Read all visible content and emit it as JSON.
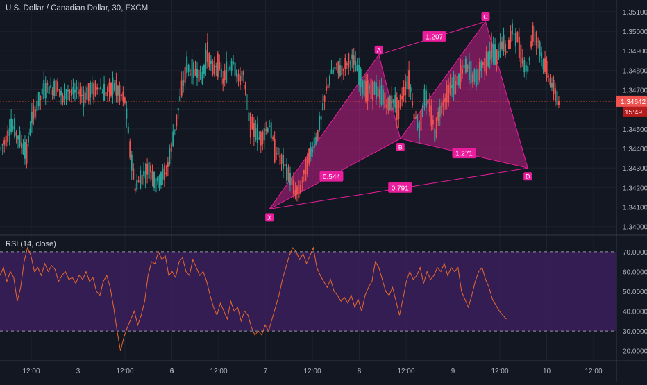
{
  "chart_data": {
    "type": "candlestick",
    "title": "U.S. Dollar / Canadian Dollar, 30, FXCM",
    "price_ylim": [
      1.3396,
      1.3516
    ],
    "price_ticks": [
      "1.35100",
      "1.35000",
      "1.34900",
      "1.34800",
      "1.34700",
      "1.34600",
      "1.34500",
      "1.34400",
      "1.34300",
      "1.34200",
      "1.34100",
      "1.34000"
    ],
    "last_price": "1.34642",
    "countdown": "15:49",
    "x_ticks": [
      "12:00",
      "3",
      "12:00",
      "6",
      "12:00",
      "7",
      "12:00",
      "8",
      "12:00",
      "9",
      "12:00",
      "10",
      "12:00"
    ],
    "bold_x_ticks": [
      "6"
    ],
    "colors": {
      "up": "#26a69a",
      "down": "#ef5350",
      "pattern": "#e91e9c",
      "rsi_line": "#e8692c",
      "rsi_band": "#3b1f5c",
      "price_line": "#ff5722"
    },
    "price_path": [
      [
        0,
        1.344
      ],
      [
        3,
        1.3445
      ],
      [
        6,
        1.3452
      ],
      [
        9,
        1.3448
      ],
      [
        12,
        1.3442
      ],
      [
        15,
        1.3438
      ],
      [
        18,
        1.3455
      ],
      [
        21,
        1.3462
      ],
      [
        24,
        1.3468
      ],
      [
        27,
        1.3472
      ],
      [
        30,
        1.347
      ],
      [
        33,
        1.3473
      ],
      [
        36,
        1.3465
      ],
      [
        39,
        1.347
      ],
      [
        42,
        1.3468
      ],
      [
        45,
        1.347
      ],
      [
        48,
        1.3466
      ],
      [
        51,
        1.3469
      ],
      [
        54,
        1.347
      ],
      [
        57,
        1.3472
      ],
      [
        60,
        1.3468
      ],
      [
        63,
        1.347
      ],
      [
        66,
        1.3472
      ],
      [
        69,
        1.3468
      ],
      [
        72,
        1.3465
      ],
      [
        75,
        1.344
      ],
      [
        78,
        1.342
      ],
      [
        81,
        1.3424
      ],
      [
        84,
        1.3428
      ],
      [
        87,
        1.343
      ],
      [
        90,
        1.3422
      ],
      [
        93,
        1.3425
      ],
      [
        96,
        1.3428
      ],
      [
        99,
        1.344
      ],
      [
        102,
        1.3455
      ],
      [
        105,
        1.347
      ],
      [
        108,
        1.3482
      ],
      [
        111,
        1.3478
      ],
      [
        114,
        1.348
      ],
      [
        117,
        1.3476
      ],
      [
        120,
        1.349
      ],
      [
        123,
        1.348
      ],
      [
        126,
        1.3484
      ],
      [
        129,
        1.3475
      ],
      [
        132,
        1.348
      ],
      [
        135,
        1.3485
      ],
      [
        138,
        1.3475
      ],
      [
        141,
        1.3478
      ],
      [
        144,
        1.3455
      ],
      [
        147,
        1.345
      ],
      [
        150,
        1.3445
      ],
      [
        153,
        1.3448
      ],
      [
        156,
        1.3452
      ],
      [
        159,
        1.344
      ],
      [
        162,
        1.3436
      ],
      [
        165,
        1.343
      ],
      [
        168,
        1.3425
      ],
      [
        171,
        1.3418
      ],
      [
        174,
        1.342
      ],
      [
        177,
        1.343
      ],
      [
        180,
        1.3438
      ],
      [
        183,
        1.3445
      ],
      [
        186,
        1.3455
      ],
      [
        189,
        1.347
      ],
      [
        192,
        1.3478
      ],
      [
        195,
        1.3482
      ],
      [
        198,
        1.348
      ],
      [
        201,
        1.3484
      ],
      [
        204,
        1.3486
      ],
      [
        207,
        1.348
      ],
      [
        210,
        1.3472
      ],
      [
        213,
        1.347
      ],
      [
        216,
        1.3471
      ],
      [
        219,
        1.3468
      ],
      [
        222,
        1.3466
      ],
      [
        225,
        1.3462
      ],
      [
        228,
        1.3465
      ],
      [
        231,
        1.346
      ],
      [
        234,
        1.347
      ],
      [
        237,
        1.3476
      ],
      [
        240,
        1.3458
      ],
      [
        243,
        1.345
      ],
      [
        246,
        1.3465
      ],
      [
        249,
        1.3462
      ],
      [
        252,
        1.3448
      ],
      [
        255,
        1.346
      ],
      [
        258,
        1.3466
      ],
      [
        261,
        1.3471
      ],
      [
        264,
        1.3472
      ],
      [
        267,
        1.3478
      ],
      [
        270,
        1.3482
      ],
      [
        273,
        1.3478
      ],
      [
        276,
        1.3475
      ],
      [
        279,
        1.3482
      ],
      [
        282,
        1.3485
      ],
      [
        285,
        1.349
      ],
      [
        288,
        1.3486
      ],
      [
        291,
        1.3494
      ],
      [
        294,
        1.349
      ],
      [
        297,
        1.35
      ],
      [
        300,
        1.3496
      ],
      [
        303,
        1.3485
      ],
      [
        306,
        1.348
      ],
      [
        309,
        1.35
      ],
      [
        312,
        1.3495
      ],
      [
        315,
        1.3484
      ],
      [
        318,
        1.3478
      ],
      [
        321,
        1.347
      ],
      [
        324,
        1.3464
      ]
    ],
    "harmonic_pattern": {
      "points": [
        {
          "label": "X",
          "t": 156.5,
          "price": 1.3409
        },
        {
          "label": "A",
          "t": 220,
          "price": 1.3488
        },
        {
          "label": "B",
          "t": 232.5,
          "price": 1.3445
        },
        {
          "label": "C",
          "t": 282,
          "price": 1.3505
        },
        {
          "label": "D",
          "t": 306.5,
          "price": 1.343
        }
      ],
      "ratios": [
        {
          "label": "0.544",
          "between": "X-B"
        },
        {
          "label": "1.207",
          "between": "A-C"
        },
        {
          "label": "1.271",
          "between": "B-D"
        },
        {
          "label": "0.791",
          "between": "X-D"
        }
      ]
    },
    "rsi": {
      "title": "RSI (14, close)",
      "ylim": [
        15,
        78
      ],
      "ticks": [
        "70.0000",
        "60.0000",
        "50.0000",
        "40.0000",
        "30.0000",
        "20.0000"
      ],
      "upper": 70,
      "lower": 30,
      "values": [
        [
          0,
          58
        ],
        [
          2,
          62
        ],
        [
          4,
          55
        ],
        [
          6,
          60
        ],
        [
          8,
          57
        ],
        [
          10,
          45
        ],
        [
          12,
          52
        ],
        [
          14,
          65
        ],
        [
          16,
          72
        ],
        [
          18,
          68
        ],
        [
          20,
          60
        ],
        [
          22,
          62
        ],
        [
          24,
          58
        ],
        [
          26,
          64
        ],
        [
          28,
          60
        ],
        [
          30,
          63
        ],
        [
          32,
          61
        ],
        [
          34,
          55
        ],
        [
          36,
          58
        ],
        [
          38,
          60
        ],
        [
          40,
          56
        ],
        [
          42,
          57
        ],
        [
          44,
          54
        ],
        [
          46,
          58
        ],
        [
          48,
          56
        ],
        [
          50,
          60
        ],
        [
          52,
          55
        ],
        [
          54,
          57
        ],
        [
          56,
          50
        ],
        [
          58,
          48
        ],
        [
          60,
          55
        ],
        [
          62,
          58
        ],
        [
          64,
          52
        ],
        [
          66,
          42
        ],
        [
          68,
          30
        ],
        [
          70,
          20
        ],
        [
          72,
          27
        ],
        [
          74,
          32
        ],
        [
          76,
          36
        ],
        [
          78,
          40
        ],
        [
          80,
          33
        ],
        [
          82,
          38
        ],
        [
          84,
          45
        ],
        [
          86,
          58
        ],
        [
          88,
          65
        ],
        [
          90,
          64
        ],
        [
          92,
          70
        ],
        [
          94,
          66
        ],
        [
          96,
          68
        ],
        [
          98,
          58
        ],
        [
          100,
          60
        ],
        [
          102,
          57
        ],
        [
          104,
          65
        ],
        [
          106,
          67
        ],
        [
          108,
          60
        ],
        [
          110,
          58
        ],
        [
          112,
          66
        ],
        [
          114,
          62
        ],
        [
          116,
          58
        ],
        [
          118,
          60
        ],
        [
          120,
          55
        ],
        [
          122,
          48
        ],
        [
          124,
          42
        ],
        [
          126,
          38
        ],
        [
          128,
          44
        ],
        [
          130,
          40
        ],
        [
          132,
          36
        ],
        [
          134,
          45
        ],
        [
          136,
          40
        ],
        [
          138,
          42
        ],
        [
          140,
          35
        ],
        [
          142,
          40
        ],
        [
          144,
          38
        ],
        [
          146,
          32
        ],
        [
          148,
          28
        ],
        [
          150,
          30
        ],
        [
          152,
          28
        ],
        [
          154,
          33
        ],
        [
          156,
          30
        ],
        [
          158,
          36
        ],
        [
          160,
          42
        ],
        [
          162,
          48
        ],
        [
          164,
          56
        ],
        [
          166,
          62
        ],
        [
          168,
          68
        ],
        [
          170,
          72
        ],
        [
          172,
          70
        ],
        [
          174,
          66
        ],
        [
          176,
          69
        ],
        [
          178,
          64
        ],
        [
          180,
          68
        ],
        [
          182,
          72
        ],
        [
          184,
          62
        ],
        [
          186,
          58
        ],
        [
          188,
          55
        ],
        [
          190,
          52
        ],
        [
          192,
          56
        ],
        [
          194,
          50
        ],
        [
          196,
          48
        ],
        [
          198,
          45
        ],
        [
          200,
          47
        ],
        [
          202,
          44
        ],
        [
          204,
          48
        ],
        [
          206,
          42
        ],
        [
          208,
          46
        ],
        [
          210,
          40
        ],
        [
          212,
          48
        ],
        [
          214,
          52
        ],
        [
          216,
          55
        ],
        [
          218,
          65
        ],
        [
          220,
          62
        ],
        [
          222,
          56
        ],
        [
          224,
          50
        ],
        [
          226,
          48
        ],
        [
          228,
          52
        ],
        [
          230,
          45
        ],
        [
          232,
          38
        ],
        [
          234,
          46
        ],
        [
          236,
          55
        ],
        [
          238,
          60
        ],
        [
          240,
          56
        ],
        [
          242,
          58
        ],
        [
          244,
          62
        ],
        [
          246,
          54
        ],
        [
          248,
          60
        ],
        [
          250,
          56
        ],
        [
          252,
          58
        ],
        [
          254,
          62
        ],
        [
          256,
          60
        ],
        [
          258,
          64
        ],
        [
          260,
          58
        ],
        [
          262,
          62
        ],
        [
          264,
          60
        ],
        [
          266,
          62
        ],
        [
          268,
          50
        ],
        [
          270,
          46
        ],
        [
          272,
          42
        ],
        [
          274,
          48
        ],
        [
          276,
          55
        ],
        [
          278,
          60
        ],
        [
          280,
          62
        ],
        [
          282,
          56
        ],
        [
          284,
          52
        ],
        [
          286,
          46
        ],
        [
          288,
          43
        ],
        [
          290,
          40
        ],
        [
          292,
          38
        ],
        [
          294,
          36
        ]
      ]
    }
  }
}
